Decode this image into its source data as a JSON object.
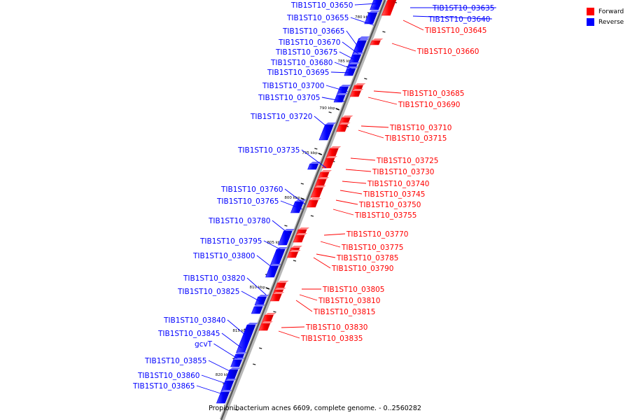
{
  "legend": {
    "items": [
      {
        "label": "Forward",
        "color": "#ff0000"
      },
      {
        "label": "Reverse",
        "color": "#0000ff"
      }
    ]
  },
  "caption": "Propionibacterium acnes 6609, complete genome. - 0..2560282",
  "colors": {
    "forward": "#ff0000",
    "reverse": "#0000ff",
    "backbone": "#8c8c8c"
  },
  "kbp_ticks": [
    "780 kbp",
    "785 kbp",
    "790 kbp",
    "795 kbp",
    "800 kbp",
    "805 kbp",
    "810 kbp",
    "815 kbp",
    "820 kbp"
  ],
  "genes": [
    {
      "label": "TIB1ST10_03635",
      "strand": "reverse"
    },
    {
      "label": "TIB1ST10_03640",
      "strand": "reverse"
    },
    {
      "label": "TIB1ST10_03645",
      "strand": "forward"
    },
    {
      "label": "TIB1ST10_03650",
      "strand": "reverse"
    },
    {
      "label": "TIB1ST10_03655",
      "strand": "reverse"
    },
    {
      "label": "TIB1ST10_03660",
      "strand": "forward"
    },
    {
      "label": "TIB1ST10_03665",
      "strand": "reverse"
    },
    {
      "label": "TIB1ST10_03670",
      "strand": "reverse"
    },
    {
      "label": "TIB1ST10_03675",
      "strand": "reverse"
    },
    {
      "label": "TIB1ST10_03680",
      "strand": "reverse"
    },
    {
      "label": "TIB1ST10_03685",
      "strand": "forward"
    },
    {
      "label": "TIB1ST10_03690",
      "strand": "forward"
    },
    {
      "label": "TIB1ST10_03695",
      "strand": "reverse"
    },
    {
      "label": "TIB1ST10_03700",
      "strand": "reverse"
    },
    {
      "label": "TIB1ST10_03705",
      "strand": "reverse"
    },
    {
      "label": "TIB1ST10_03710",
      "strand": "forward"
    },
    {
      "label": "TIB1ST10_03715",
      "strand": "forward"
    },
    {
      "label": "TIB1ST10_03720",
      "strand": "reverse"
    },
    {
      "label": "TIB1ST10_03725",
      "strand": "forward"
    },
    {
      "label": "TIB1ST10_03730",
      "strand": "forward"
    },
    {
      "label": "TIB1ST10_03735",
      "strand": "reverse"
    },
    {
      "label": "TIB1ST10_03740",
      "strand": "forward"
    },
    {
      "label": "TIB1ST10_03745",
      "strand": "forward"
    },
    {
      "label": "TIB1ST10_03750",
      "strand": "forward"
    },
    {
      "label": "TIB1ST10_03755",
      "strand": "forward"
    },
    {
      "label": "TIB1ST10_03760",
      "strand": "reverse"
    },
    {
      "label": "TIB1ST10_03765",
      "strand": "reverse"
    },
    {
      "label": "TIB1ST10_03770",
      "strand": "forward"
    },
    {
      "label": "TIB1ST10_03775",
      "strand": "forward"
    },
    {
      "label": "TIB1ST10_03780",
      "strand": "reverse"
    },
    {
      "label": "TIB1ST10_03785",
      "strand": "forward"
    },
    {
      "label": "TIB1ST10_03790",
      "strand": "forward"
    },
    {
      "label": "TIB1ST10_03795",
      "strand": "reverse"
    },
    {
      "label": "TIB1ST10_03800",
      "strand": "reverse"
    },
    {
      "label": "TIB1ST10_03805",
      "strand": "forward"
    },
    {
      "label": "TIB1ST10_03810",
      "strand": "forward"
    },
    {
      "label": "TIB1ST10_03815",
      "strand": "forward"
    },
    {
      "label": "TIB1ST10_03820",
      "strand": "reverse"
    },
    {
      "label": "TIB1ST10_03825",
      "strand": "reverse"
    },
    {
      "label": "TIB1ST10_03830",
      "strand": "forward"
    },
    {
      "label": "TIB1ST10_03835",
      "strand": "forward"
    },
    {
      "label": "TIB1ST10_03840",
      "strand": "reverse"
    },
    {
      "label": "TIB1ST10_03845",
      "strand": "reverse"
    },
    {
      "label": "gcvT",
      "strand": "reverse"
    },
    {
      "label": "TIB1ST10_03855",
      "strand": "reverse"
    },
    {
      "label": "TIB1ST10_03860",
      "strand": "reverse"
    },
    {
      "label": "TIB1ST10_03865",
      "strand": "reverse"
    }
  ]
}
